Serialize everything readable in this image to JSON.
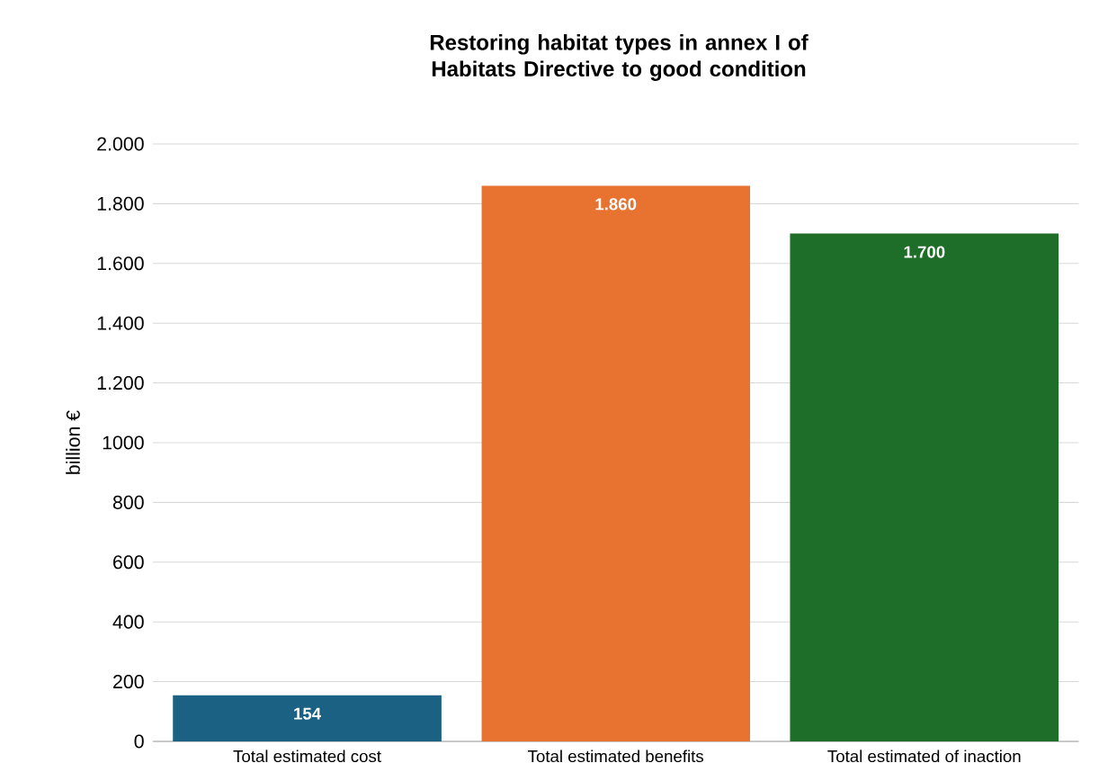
{
  "chart_data": {
    "type": "bar",
    "title": "Restoring habitat types in annex I of Habitats Directive to good condition",
    "ylabel": "billion €",
    "categories": [
      "Total estimated cost",
      "Total estimated benefits",
      "Total estimated of inaction"
    ],
    "values": [
      154,
      1860,
      1700
    ],
    "colors": [
      "#1b6183",
      "#e87331",
      "#1e6d29"
    ],
    "value_labels": [
      "154",
      "1.860",
      "1.700"
    ],
    "ylim": [
      0,
      2000
    ],
    "yticks": [
      0,
      200,
      400,
      600,
      800,
      1000,
      {
        "value": 1200,
        "label": "1.200"
      },
      {
        "value": 1400,
        "label": "1.400"
      },
      {
        "value": 1600,
        "label": "1.600"
      },
      {
        "value": 1800,
        "label": "1.800"
      },
      {
        "value": 2000,
        "label": "2.000"
      }
    ],
    "grid": "y"
  }
}
